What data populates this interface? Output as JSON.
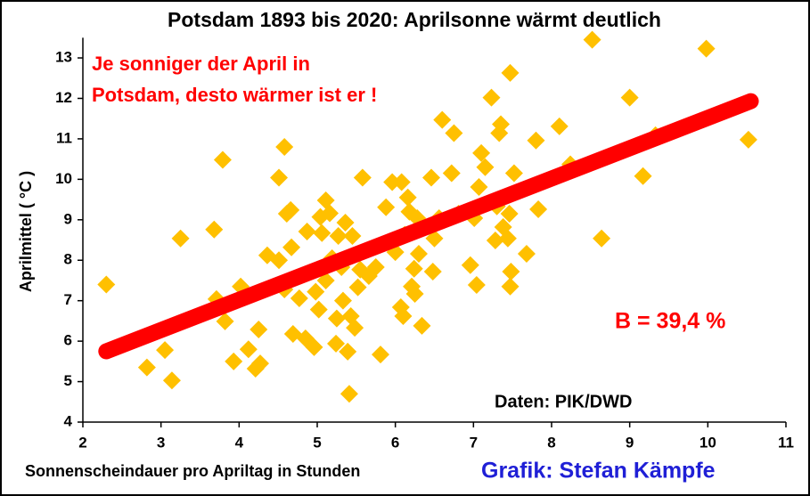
{
  "chart_data": {
    "type": "scatter",
    "title": "Potsdam 1893 bis 2020: Aprilsonne  wärmt  deutlich",
    "x_label": "Sonnenscheindauer pro Apriltag in Stunden",
    "y_label": "Aprilmittel ( °C )",
    "annotations": [
      "Je sonniger der April in",
      "Potsdam, desto wärmer ist er !",
      "B = 39,4 %",
      "Daten: PIK/DWD",
      "Grafik: Stefan Kämpfe"
    ],
    "color": "#ffc000",
    "trend": {
      "color": "#ff0000",
      "x": [
        2.3,
        10.55
      ],
      "y": [
        5.75,
        11.93
      ]
    },
    "xlim": [
      2,
      11
    ],
    "xticks": [
      2,
      3,
      4,
      5,
      6,
      7,
      8,
      9,
      10,
      11
    ],
    "ylim": [
      4,
      13.5
    ],
    "yticks": [
      4,
      5,
      6,
      7,
      8,
      9,
      10,
      11,
      12,
      13
    ],
    "x": [
      2.3,
      2.82,
      3.05,
      3.14,
      3.25,
      3.68,
      3.71,
      3.79,
      3.82,
      3.93,
      4.02,
      4.12,
      4.21,
      4.25,
      4.27,
      4.36,
      4.51,
      4.51,
      4.58,
      4.61,
      4.66,
      4.67,
      4.58,
      4.69,
      4.77,
      4.85,
      4.87,
      4.96,
      4.98,
      5.02,
      5.04,
      5.06,
      5.11,
      5.11,
      5.16,
      5.19,
      5.24,
      5.25,
      5.27,
      5.31,
      5.33,
      5.36,
      5.39,
      5.41,
      5.43,
      5.45,
      5.48,
      5.52,
      5.55,
      5.58,
      5.66,
      5.75,
      5.81,
      5.88,
      5.96,
      6.0,
      6.07,
      6.08,
      6.1,
      6.12,
      6.16,
      6.18,
      6.21,
      6.24,
      6.25,
      6.28,
      6.3,
      6.34,
      6.46,
      6.48,
      6.5,
      6.56,
      6.6,
      6.72,
      6.75,
      6.81,
      6.96,
      7.01,
      7.04,
      7.07,
      7.1,
      7.15,
      7.23,
      7.28,
      7.3,
      7.33,
      7.35,
      7.38,
      7.44,
      7.46,
      7.47,
      7.47,
      7.48,
      7.52,
      7.68,
      7.8,
      7.83,
      8.1,
      8.24,
      8.52,
      8.64,
      9.0,
      9.17,
      9.33,
      9.98,
      10.52
    ],
    "y": [
      7.4,
      5.35,
      5.78,
      5.03,
      8.54,
      8.76,
      7.04,
      10.48,
      6.49,
      5.5,
      7.35,
      5.8,
      5.32,
      6.29,
      5.45,
      8.12,
      10.04,
      8.0,
      10.8,
      9.15,
      9.24,
      8.32,
      7.28,
      6.18,
      7.06,
      6.07,
      8.71,
      5.85,
      7.22,
      6.78,
      9.07,
      8.67,
      9.48,
      7.5,
      9.16,
      8.05,
      5.94,
      6.56,
      8.6,
      7.83,
      7.0,
      8.93,
      5.74,
      4.7,
      6.62,
      8.6,
      6.33,
      7.33,
      7.77,
      10.04,
      7.61,
      7.83,
      5.67,
      9.31,
      9.93,
      8.2,
      6.84,
      9.93,
      6.62,
      8.63,
      9.55,
      9.2,
      7.35,
      7.79,
      7.17,
      9.04,
      8.16,
      6.38,
      10.04,
      7.72,
      8.54,
      9.04,
      11.47,
      10.15,
      11.14,
      9.15,
      7.88,
      9.04,
      7.39,
      9.81,
      10.65,
      10.3,
      12.02,
      8.49,
      9.33,
      11.14,
      11.36,
      8.82,
      8.54,
      9.15,
      12.63,
      7.35,
      7.72,
      10.15,
      8.16,
      10.96,
      9.26,
      11.31,
      10.37,
      13.45,
      8.54,
      12.02,
      10.08,
      11.09,
      13.23,
      10.98
    ]
  }
}
